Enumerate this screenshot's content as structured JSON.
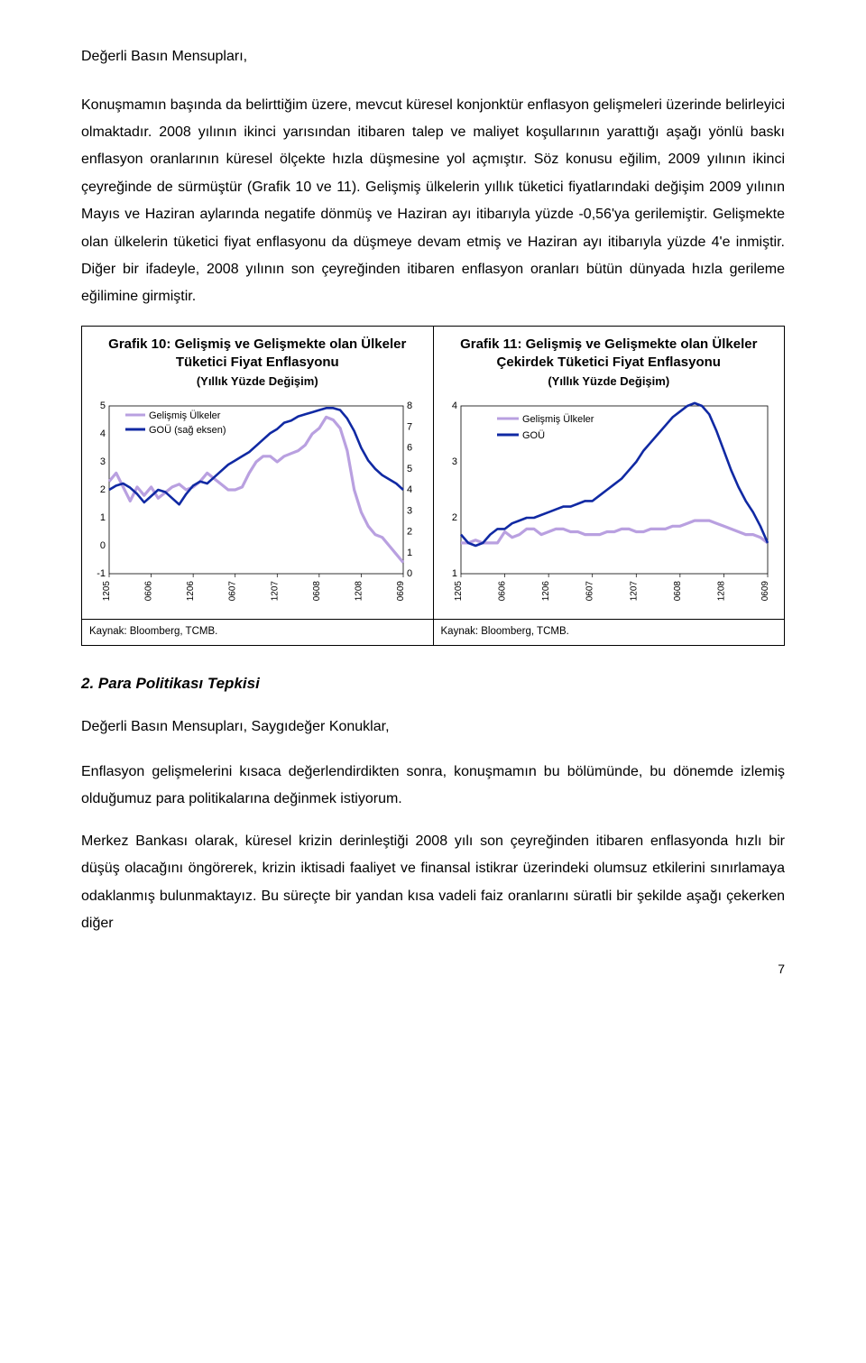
{
  "greeting": "Değerli Basın Mensupları,",
  "para1": "Konuşmamın başında da belirttiğim üzere, mevcut küresel konjonktür enflasyon gelişmeleri üzerinde belirleyici olmaktadır. 2008 yılının ikinci yarısından itibaren talep ve maliyet koşullarının yarattığı aşağı yönlü baskı enflasyon oranlarının küresel ölçekte hızla düşmesine yol açmıştır. Söz konusu eğilim, 2009 yılının ikinci çeyreğinde de sürmüştür (Grafik 10 ve 11). Gelişmiş ülkelerin yıllık tüketici fiyatlarındaki değişim 2009 yılının Mayıs ve Haziran aylarında negatife dönmüş ve Haziran ayı itibarıyla yüzde -0,56'ya gerilemiştir. Gelişmekte olan ülkelerin tüketici fiyat enflasyonu da düşmeye devam etmiş ve Haziran ayı itibarıyla yüzde 4'e inmiştir. Diğer bir ifadeyle, 2008 yılının son çeyreğinden itibaren enflasyon oranları bütün dünyada hızla gerileme eğilimine girmiştir.",
  "chart10": {
    "title": "Grafik 10: Gelişmiş ve Gelişmekte olan Ülkeler Tüketici Fiyat Enflasyonu",
    "subtitle": "(Yıllık Yüzde Değişim)",
    "type": "line-dual-axis",
    "x_labels": [
      "1205",
      "0606",
      "1206",
      "0607",
      "1207",
      "0608",
      "1208",
      "0609"
    ],
    "left_axis": {
      "min": -1,
      "max": 5,
      "step": 1
    },
    "right_axis": {
      "min": 0,
      "max": 8,
      "step": 1
    },
    "series": [
      {
        "name": "Gelişmiş Ülkeler",
        "color": "#b9a0e0",
        "width": 3.2,
        "axis": "left",
        "values": [
          2.3,
          2.6,
          2.1,
          1.6,
          2.1,
          1.8,
          2.1,
          1.7,
          1.9,
          2.1,
          2.2,
          2.0,
          2.1,
          2.3,
          2.6,
          2.4,
          2.2,
          2.0,
          2.0,
          2.1,
          2.6,
          3.0,
          3.2,
          3.2,
          3.0,
          3.2,
          3.3,
          3.4,
          3.6,
          4.0,
          4.2,
          4.6,
          4.5,
          4.2,
          3.4,
          2.0,
          1.2,
          0.7,
          0.4,
          0.3,
          0.0,
          -0.3,
          -0.6
        ]
      },
      {
        "name": "GOÜ (sağ eksen)",
        "color": "#1029a3",
        "width": 2.6,
        "axis": "right",
        "values": [
          4.0,
          4.2,
          4.3,
          4.1,
          3.8,
          3.4,
          3.7,
          4.0,
          3.9,
          3.6,
          3.3,
          3.8,
          4.2,
          4.4,
          4.3,
          4.6,
          4.9,
          5.2,
          5.4,
          5.6,
          5.8,
          6.1,
          6.4,
          6.7,
          6.9,
          7.2,
          7.3,
          7.5,
          7.6,
          7.7,
          7.8,
          7.9,
          7.9,
          7.8,
          7.4,
          6.8,
          6.0,
          5.4,
          5.0,
          4.7,
          4.5,
          4.3,
          4.0
        ]
      }
    ],
    "legend": [
      {
        "label": "Gelişmiş Ülkeler",
        "color": "#b9a0e0"
      },
      {
        "label": "GOÜ (sağ eksen)",
        "color": "#1029a3"
      }
    ],
    "source": "Kaynak: Bloomberg, TCMB.",
    "plot": {
      "bg": "#ffffff",
      "border": "#000000"
    }
  },
  "chart11": {
    "title": "Grafik 11: Gelişmiş ve Gelişmekte olan Ülkeler Çekirdek Tüketici Fiyat Enflasyonu",
    "subtitle": "(Yıllık Yüzde Değişim)",
    "type": "line",
    "x_labels": [
      "1205",
      "0606",
      "1206",
      "0607",
      "1207",
      "0608",
      "1208",
      "0609"
    ],
    "y_axis": {
      "min": 1,
      "max": 4,
      "step": 1
    },
    "series": [
      {
        "name": "Gelişmiş Ülkeler",
        "color": "#b9a0e0",
        "width": 3.2,
        "values": [
          1.55,
          1.55,
          1.6,
          1.55,
          1.55,
          1.55,
          1.75,
          1.65,
          1.7,
          1.8,
          1.8,
          1.7,
          1.75,
          1.8,
          1.8,
          1.75,
          1.75,
          1.7,
          1.7,
          1.7,
          1.75,
          1.75,
          1.8,
          1.8,
          1.75,
          1.75,
          1.8,
          1.8,
          1.8,
          1.85,
          1.85,
          1.9,
          1.95,
          1.95,
          1.95,
          1.9,
          1.85,
          1.8,
          1.75,
          1.7,
          1.7,
          1.65,
          1.55
        ]
      },
      {
        "name": "GOÜ",
        "color": "#1029a3",
        "width": 2.6,
        "values": [
          1.7,
          1.55,
          1.5,
          1.55,
          1.7,
          1.8,
          1.8,
          1.9,
          1.95,
          2.0,
          2.0,
          2.05,
          2.1,
          2.15,
          2.2,
          2.2,
          2.25,
          2.3,
          2.3,
          2.4,
          2.5,
          2.6,
          2.7,
          2.85,
          3.0,
          3.2,
          3.35,
          3.5,
          3.65,
          3.8,
          3.9,
          4.0,
          4.05,
          4.0,
          3.85,
          3.55,
          3.2,
          2.85,
          2.55,
          2.3,
          2.1,
          1.85,
          1.55
        ]
      }
    ],
    "legend": [
      {
        "label": "Gelişmiş Ülkeler",
        "color": "#b9a0e0"
      },
      {
        "label": "GOÜ",
        "color": "#1029a3"
      }
    ],
    "source": "Kaynak: Bloomberg, TCMB.",
    "plot": {
      "bg": "#ffffff",
      "border": "#000000"
    }
  },
  "section2_heading": "2. Para Politikası Tepkisi",
  "subgreeting": "Değerli Basın Mensupları, Saygıdeğer Konuklar,",
  "para2": "Enflasyon gelişmelerini kısaca değerlendirdikten sonra, konuşmamın bu bölümünde, bu dönemde izlemiş olduğumuz para politikalarına değinmek istiyorum.",
  "para3": "Merkez Bankası olarak, küresel krizin derinleştiği 2008 yılı son çeyreğinden itibaren enflasyonda hızlı bir düşüş olacağını öngörerek, krizin iktisadi faaliyet ve finansal istikrar üzerindeki olumsuz etkilerini sınırlamaya odaklanmış bulunmaktayız. Bu süreçte bir yandan kısa vadeli faiz oranlarını süratli bir şekilde aşağı çekerken diğer",
  "page_number": "7"
}
